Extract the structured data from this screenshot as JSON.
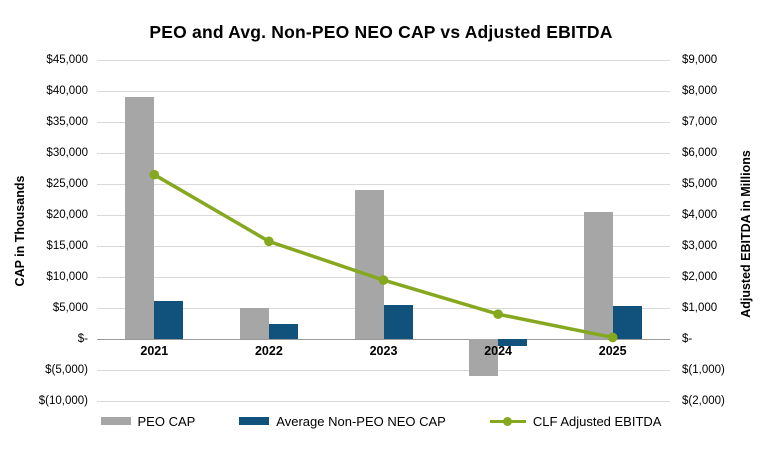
{
  "title": "PEO and Avg. Non-PEO NEO CAP vs Adjusted EBITDA",
  "chart_data": {
    "type": "bar",
    "subtype": "grouped bars with overlay line (combo chart, dual axis)",
    "categories": [
      "2021",
      "2022",
      "2023",
      "2024",
      "2025"
    ],
    "series": [
      {
        "name": "PEO CAP",
        "type": "bar",
        "axis": "left",
        "color": "#a6a6a6",
        "values": [
          39100,
          5000,
          24000,
          -5900,
          20500
        ]
      },
      {
        "name": "Average Non-PEO NEO CAP",
        "type": "bar",
        "axis": "left",
        "color": "#10527c",
        "values": [
          6100,
          2400,
          5500,
          -1200,
          5400
        ]
      },
      {
        "name": "CLF Adjusted EBITDA",
        "type": "line",
        "axis": "right",
        "color": "#86a81e",
        "values": [
          5300,
          3150,
          1900,
          800,
          50
        ]
      }
    ],
    "left_axis": {
      "label": "CAP in Thousands",
      "min": -10000,
      "max": 45000,
      "step": 5000,
      "tick_labels": [
        "$45,000",
        "$40,000",
        "$35,000",
        "$30,000",
        "$25,000",
        "$20,000",
        "$15,000",
        "$10,000",
        "$5,000",
        "$-",
        "$(5,000)",
        "$(10,000)"
      ]
    },
    "right_axis": {
      "label": "Adjusted EBITDA in Millions",
      "min": -2000,
      "max": 9000,
      "step": 1000,
      "tick_labels": [
        "$9,000",
        "$8,000",
        "$7,000",
        "$6,000",
        "$5,000",
        "$4,000",
        "$3,000",
        "$2,000",
        "$1,000",
        "$-",
        "$(1,000)",
        "$(2,000)"
      ]
    },
    "grid": true,
    "legend_position": "bottom"
  }
}
